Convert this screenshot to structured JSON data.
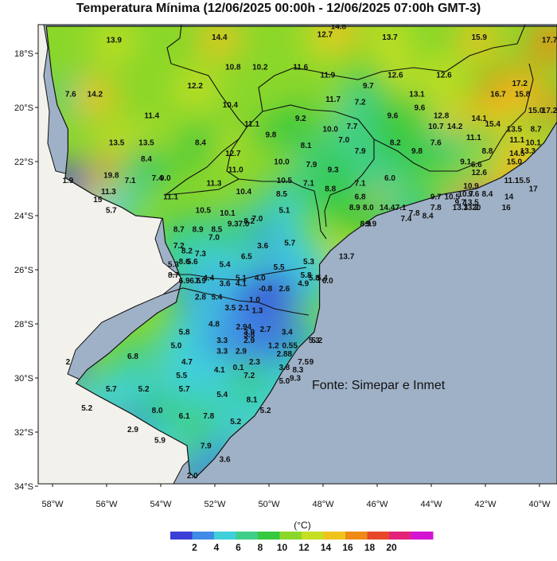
{
  "title": "Temperatura Mínima (12/06/2025 00:00h - 12/06/2025 07:00h GMT-3)",
  "source": "Fonte: Simepar e Inmet",
  "colorbar": {
    "unit": "(°C)",
    "ticks": [
      "2",
      "4",
      "6",
      "8",
      "10",
      "12",
      "14",
      "16",
      "18",
      "20"
    ],
    "colors": [
      "#3b3fd6",
      "#3f8be6",
      "#3fd0d9",
      "#3fcf8a",
      "#35c93e",
      "#8ad72a",
      "#c5df22",
      "#f0c21c",
      "#ef8a18",
      "#e8482a",
      "#e3237a",
      "#d414d3"
    ]
  },
  "colors": {
    "ocean": "#9fb1c6",
    "outside_land": "#f2f1ec",
    "border": "#111111"
  },
  "axes": {
    "lat_labels": [
      "18°S",
      "20°S",
      "22°S",
      "24°S",
      "26°S",
      "28°S",
      "30°S",
      "32°S",
      "34°S"
    ],
    "lon_labels": [
      "58°W",
      "56°W",
      "54°W",
      "52°W",
      "50°W",
      "48°W",
      "46°W",
      "44°W",
      "42°W",
      "40°W"
    ]
  },
  "stations": [
    {
      "lon": -56.2,
      "lat": -17.6,
      "v": "13.9"
    },
    {
      "lon": -52.3,
      "lat": -17.5,
      "v": "14.4"
    },
    {
      "lon": -48.4,
      "lat": -17.4,
      "v": "12.7"
    },
    {
      "lon": -47.9,
      "lat": -17.1,
      "v": "14.8"
    },
    {
      "lon": -46.0,
      "lat": -17.5,
      "v": "13.7"
    },
    {
      "lon": -42.7,
      "lat": -17.5,
      "v": "15.9"
    },
    {
      "lon": -40.1,
      "lat": -17.6,
      "v": "17.7"
    },
    {
      "lon": -51.8,
      "lat": -18.6,
      "v": "10.8"
    },
    {
      "lon": -50.8,
      "lat": -18.6,
      "v": "10.2"
    },
    {
      "lon": -49.3,
      "lat": -18.6,
      "v": "11.6"
    },
    {
      "lon": -48.3,
      "lat": -18.9,
      "v": "11.9"
    },
    {
      "lon": -45.8,
      "lat": -18.9,
      "v": "12.6"
    },
    {
      "lon": -44.0,
      "lat": -18.9,
      "v": "12.6"
    },
    {
      "lon": -57.8,
      "lat": -19.6,
      "v": "7.6"
    },
    {
      "lon": -56.9,
      "lat": -19.6,
      "v": "14.2"
    },
    {
      "lon": -53.2,
      "lat": -19.3,
      "v": "12.2"
    },
    {
      "lon": -46.8,
      "lat": -19.3,
      "v": "9.7"
    },
    {
      "lon": -45.0,
      "lat": -19.6,
      "v": "13.1"
    },
    {
      "lon": -42.0,
      "lat": -19.6,
      "v": "16.7"
    },
    {
      "lon": -41.2,
      "lat": -19.2,
      "v": "17.2"
    },
    {
      "lon": -41.1,
      "lat": -19.6,
      "v": "15.8"
    },
    {
      "lon": -48.1,
      "lat": -19.8,
      "v": "11.7"
    },
    {
      "lon": -47.1,
      "lat": -19.9,
      "v": "7.2"
    },
    {
      "lon": -44.9,
      "lat": -20.1,
      "v": "9.6"
    },
    {
      "lon": -51.9,
      "lat": -20.0,
      "v": "10.4"
    },
    {
      "lon": -45.9,
      "lat": -20.4,
      "v": "9.6"
    },
    {
      "lon": -44.1,
      "lat": -20.4,
      "v": "12.8"
    },
    {
      "lon": -42.7,
      "lat": -20.5,
      "v": "14.1"
    },
    {
      "lon": -42.2,
      "lat": -20.7,
      "v": "15.4"
    },
    {
      "lon": -40.6,
      "lat": -20.2,
      "v": "15.0"
    },
    {
      "lon": -40.1,
      "lat": -20.2,
      "v": "17.2"
    },
    {
      "lon": -54.8,
      "lat": -20.4,
      "v": "11.4"
    },
    {
      "lon": -49.3,
      "lat": -20.5,
      "v": "9.2"
    },
    {
      "lon": -51.1,
      "lat": -20.7,
      "v": "11.1"
    },
    {
      "lon": -44.3,
      "lat": -20.8,
      "v": "10.7"
    },
    {
      "lon": -43.6,
      "lat": -20.8,
      "v": "14.2"
    },
    {
      "lon": -41.4,
      "lat": -20.9,
      "v": "13.5"
    },
    {
      "lon": -40.6,
      "lat": -20.9,
      "v": "8.7"
    },
    {
      "lon": -48.2,
      "lat": -20.9,
      "v": "10.0"
    },
    {
      "lon": -47.4,
      "lat": -20.8,
      "v": "7.7"
    },
    {
      "lon": -50.4,
      "lat": -21.1,
      "v": "9.8"
    },
    {
      "lon": -47.7,
      "lat": -21.3,
      "v": "7.0"
    },
    {
      "lon": -42.9,
      "lat": -21.2,
      "v": "11.1"
    },
    {
      "lon": -41.3,
      "lat": -21.3,
      "v": "11.1"
    },
    {
      "lon": -40.7,
      "lat": -21.4,
      "v": "10.1"
    },
    {
      "lon": -56.1,
      "lat": -21.4,
      "v": "13.5"
    },
    {
      "lon": -55.0,
      "lat": -21.4,
      "v": "13.5"
    },
    {
      "lon": -53.0,
      "lat": -21.4,
      "v": "8.4"
    },
    {
      "lon": -45.8,
      "lat": -21.4,
      "v": "8.2"
    },
    {
      "lon": -44.3,
      "lat": -21.4,
      "v": "7.6"
    },
    {
      "lon": -49.1,
      "lat": -21.5,
      "v": "8.1"
    },
    {
      "lon": -47.1,
      "lat": -21.7,
      "v": "7.9"
    },
    {
      "lon": -40.9,
      "lat": -21.7,
      "v": "13.3"
    },
    {
      "lon": -42.4,
      "lat": -21.7,
      "v": "8.8"
    },
    {
      "lon": -51.8,
      "lat": -21.8,
      "v": "12.7"
    },
    {
      "lon": -41.3,
      "lat": -21.8,
      "v": "14.5"
    },
    {
      "lon": -45.0,
      "lat": -21.7,
      "v": "9.8"
    },
    {
      "lon": -55.0,
      "lat": -22.0,
      "v": "8.4"
    },
    {
      "lon": -50.0,
      "lat": -22.1,
      "v": "10.0"
    },
    {
      "lon": -48.9,
      "lat": -22.2,
      "v": "7.9"
    },
    {
      "lon": -43.2,
      "lat": -22.1,
      "v": "9.1"
    },
    {
      "lon": -42.8,
      "lat": -22.2,
      "v": "6.6"
    },
    {
      "lon": -41.4,
      "lat": -22.1,
      "v": "15.0"
    },
    {
      "lon": -48.1,
      "lat": -22.4,
      "v": "9.3"
    },
    {
      "lon": -56.3,
      "lat": -22.6,
      "v": "19.8"
    },
    {
      "lon": -51.7,
      "lat": -22.4,
      "v": "11.0"
    },
    {
      "lon": -42.7,
      "lat": -22.5,
      "v": "12.6"
    },
    {
      "lon": -54.6,
      "lat": -22.7,
      "v": "7.4"
    },
    {
      "lon": -54.3,
      "lat": -22.7,
      "v": "9.0"
    },
    {
      "lon": -49.9,
      "lat": -22.8,
      "v": "10.5"
    },
    {
      "lon": -46.0,
      "lat": -22.7,
      "v": "6.0"
    },
    {
      "lon": -55.6,
      "lat": -22.8,
      "v": "7.1"
    },
    {
      "lon": -52.5,
      "lat": -22.9,
      "v": "11.3"
    },
    {
      "lon": -49.0,
      "lat": -22.9,
      "v": "7.1"
    },
    {
      "lon": -47.1,
      "lat": -22.9,
      "v": "7.1"
    },
    {
      "lon": -57.9,
      "lat": -22.8,
      "v": "1.9"
    },
    {
      "lon": -41.5,
      "lat": -22.8,
      "v": "11.1"
    },
    {
      "lon": -41.1,
      "lat": -22.8,
      "v": "15.5"
    },
    {
      "lon": -43.0,
      "lat": -23.0,
      "v": "10.9"
    },
    {
      "lon": -48.2,
      "lat": -23.1,
      "v": "8.8"
    },
    {
      "lon": -40.7,
      "lat": -23.1,
      "v": "17"
    },
    {
      "lon": -51.4,
      "lat": -23.2,
      "v": "10.4"
    },
    {
      "lon": -56.4,
      "lat": -23.2,
      "v": "11.3"
    },
    {
      "lon": -54.1,
      "lat": -23.4,
      "v": "11.1"
    },
    {
      "lon": -50.0,
      "lat": -23.3,
      "v": "8.5"
    },
    {
      "lon": -44.3,
      "lat": -23.4,
      "v": "9.7"
    },
    {
      "lon": -43.7,
      "lat": -23.4,
      "v": "10.5"
    },
    {
      "lon": -43.2,
      "lat": -23.3,
      "v": "10.7"
    },
    {
      "lon": -42.9,
      "lat": -23.3,
      "v": "9.6"
    },
    {
      "lon": -42.4,
      "lat": -23.3,
      "v": "8.4"
    },
    {
      "lon": -41.6,
      "lat": -23.4,
      "v": "14"
    },
    {
      "lon": -47.1,
      "lat": -23.4,
      "v": "6.8"
    },
    {
      "lon": -56.8,
      "lat": -23.5,
      "v": "15"
    },
    {
      "lon": -43.4,
      "lat": -23.6,
      "v": "9.7"
    },
    {
      "lon": -43.0,
      "lat": -23.6,
      "v": "13.5"
    },
    {
      "lon": -47.3,
      "lat": -23.8,
      "v": "8.9"
    },
    {
      "lon": -46.8,
      "lat": -23.8,
      "v": "8.0"
    },
    {
      "lon": -46.1,
      "lat": -23.8,
      "v": "14.4"
    },
    {
      "lon": -45.6,
      "lat": -23.8,
      "v": "7.1"
    },
    {
      "lon": -44.3,
      "lat": -23.8,
      "v": "7.8"
    },
    {
      "lon": -43.4,
      "lat": -23.8,
      "v": "13.3"
    },
    {
      "lon": -43.0,
      "lat": -23.8,
      "v": "13.2"
    },
    {
      "lon": -42.8,
      "lat": -23.8,
      "v": "20"
    },
    {
      "lon": -41.7,
      "lat": -23.8,
      "v": "16"
    },
    {
      "lon": -52.9,
      "lat": -23.9,
      "v": "10.5"
    },
    {
      "lon": -56.3,
      "lat": -23.9,
      "v": "5.7"
    },
    {
      "lon": -52.0,
      "lat": -24.0,
      "v": "10.1"
    },
    {
      "lon": -49.9,
      "lat": -23.9,
      "v": "5.1"
    },
    {
      "lon": -45.1,
      "lat": -24.0,
      "v": "7.8"
    },
    {
      "lon": -50.9,
      "lat": -24.2,
      "v": "7.0"
    },
    {
      "lon": -44.6,
      "lat": -24.1,
      "v": "8.4"
    },
    {
      "lon": -51.2,
      "lat": -24.3,
      "v": "8.2"
    },
    {
      "lon": -51.8,
      "lat": -24.4,
      "v": "9.3"
    },
    {
      "lon": -51.4,
      "lat": -24.4,
      "v": "7.0"
    },
    {
      "lon": -45.4,
      "lat": -24.2,
      "v": "7.4"
    },
    {
      "lon": -46.9,
      "lat": -24.4,
      "v": "8.9"
    },
    {
      "lon": -46.7,
      "lat": -24.4,
      "v": "9.9"
    },
    {
      "lon": -53.8,
      "lat": -24.6,
      "v": "8.7"
    },
    {
      "lon": -53.1,
      "lat": -24.6,
      "v": "8.9"
    },
    {
      "lon": -52.4,
      "lat": -24.6,
      "v": "8.5"
    },
    {
      "lon": -52.5,
      "lat": -24.9,
      "v": "7.0"
    },
    {
      "lon": -49.7,
      "lat": -25.1,
      "v": "5.7"
    },
    {
      "lon": -50.7,
      "lat": -25.2,
      "v": "3.6"
    },
    {
      "lon": -53.8,
      "lat": -25.2,
      "v": "7.2"
    },
    {
      "lon": -53.5,
      "lat": -25.4,
      "v": "8.2"
    },
    {
      "lon": -53.0,
      "lat": -25.5,
      "v": "7.3"
    },
    {
      "lon": -51.3,
      "lat": -25.6,
      "v": "6.5"
    },
    {
      "lon": -47.6,
      "lat": -25.6,
      "v": "13.7"
    },
    {
      "lon": -53.6,
      "lat": -25.8,
      "v": "8.6"
    },
    {
      "lon": -54.0,
      "lat": -25.9,
      "v": "5.3"
    },
    {
      "lon": -53.3,
      "lat": -25.8,
      "v": "5.6"
    },
    {
      "lon": -52.1,
      "lat": -25.9,
      "v": "5.4"
    },
    {
      "lon": -49.0,
      "lat": -25.8,
      "v": "5.3"
    },
    {
      "lon": -50.1,
      "lat": -26.0,
      "v": "5.5"
    },
    {
      "lon": -54.0,
      "lat": -26.3,
      "v": "8.7"
    },
    {
      "lon": -53.6,
      "lat": -26.5,
      "v": "6.9"
    },
    {
      "lon": -53.2,
      "lat": -26.5,
      "v": "6.6"
    },
    {
      "lon": -53.0,
      "lat": -26.5,
      "v": "7.9"
    },
    {
      "lon": -52.7,
      "lat": -26.4,
      "v": "4.4"
    },
    {
      "lon": -51.5,
      "lat": -26.4,
      "v": "5.1"
    },
    {
      "lon": -50.8,
      "lat": -26.4,
      "v": "4.0"
    },
    {
      "lon": -49.1,
      "lat": -26.3,
      "v": "5.8"
    },
    {
      "lon": -48.8,
      "lat": -26.4,
      "v": "5.8"
    },
    {
      "lon": -48.5,
      "lat": -26.4,
      "v": "5.4"
    },
    {
      "lon": -48.3,
      "lat": -26.5,
      "v": "6.0"
    },
    {
      "lon": -52.1,
      "lat": -26.6,
      "v": "3.6"
    },
    {
      "lon": -51.5,
      "lat": -26.6,
      "v": "4.1"
    },
    {
      "lon": -49.2,
      "lat": -26.6,
      "v": "4.9"
    },
    {
      "lon": -49.9,
      "lat": -26.8,
      "v": "2.6"
    },
    {
      "lon": -50.6,
      "lat": -26.8,
      "v": "-0.8"
    },
    {
      "lon": -53.0,
      "lat": -27.1,
      "v": "2.8"
    },
    {
      "lon": -52.4,
      "lat": -27.1,
      "v": "5.4"
    },
    {
      "lon": -51.0,
      "lat": -27.2,
      "v": "1.0"
    },
    {
      "lon": -51.9,
      "lat": -27.5,
      "v": "3.5"
    },
    {
      "lon": -51.4,
      "lat": -27.5,
      "v": "2.1"
    },
    {
      "lon": -50.9,
      "lat": -27.6,
      "v": "1.3"
    },
    {
      "lon": -52.5,
      "lat": -28.1,
      "v": "4.8"
    },
    {
      "lon": -51.4,
      "lat": -28.2,
      "v": "2.94"
    },
    {
      "lon": -50.6,
      "lat": -28.3,
      "v": "2.7"
    },
    {
      "lon": -53.6,
      "lat": -28.4,
      "v": "5.8"
    },
    {
      "lon": -51.2,
      "lat": -28.4,
      "v": "3.9"
    },
    {
      "lon": -49.8,
      "lat": -28.4,
      "v": "3.4"
    },
    {
      "lon": -51.2,
      "lat": -28.5,
      "v": "3.8"
    },
    {
      "lon": -51.2,
      "lat": -28.7,
      "v": "2.9"
    },
    {
      "lon": -52.2,
      "lat": -28.7,
      "v": "3.3"
    },
    {
      "lon": -48.7,
      "lat": -28.7,
      "v": "5.2"
    },
    {
      "lon": -48.8,
      "lat": -28.7,
      "v": "5.3"
    },
    {
      "lon": -53.9,
      "lat": -28.9,
      "v": "5.0"
    },
    {
      "lon": -50.3,
      "lat": -28.9,
      "v": "1.2"
    },
    {
      "lon": -49.7,
      "lat": -28.9,
      "v": "0.55"
    },
    {
      "lon": -52.2,
      "lat": -29.1,
      "v": "3.3"
    },
    {
      "lon": -51.5,
      "lat": -29.1,
      "v": "2.9"
    },
    {
      "lon": -49.9,
      "lat": -29.2,
      "v": "2.88"
    },
    {
      "lon": -55.5,
      "lat": -29.3,
      "v": "6.8"
    },
    {
      "lon": -49.2,
      "lat": -29.5,
      "v": "7.5"
    },
    {
      "lon": -48.9,
      "lat": -29.5,
      "v": "9"
    },
    {
      "lon": -57.9,
      "lat": -29.5,
      "v": "2"
    },
    {
      "lon": -53.5,
      "lat": -29.5,
      "v": "4.7"
    },
    {
      "lon": -51.0,
      "lat": -29.5,
      "v": "2.3"
    },
    {
      "lon": -49.9,
      "lat": -29.7,
      "v": "3.8"
    },
    {
      "lon": -51.6,
      "lat": -29.7,
      "v": "0.1"
    },
    {
      "lon": -52.3,
      "lat": -29.8,
      "v": "4.1"
    },
    {
      "lon": -49.4,
      "lat": -29.8,
      "v": "8.3"
    },
    {
      "lon": -53.7,
      "lat": -30.0,
      "v": "5.5"
    },
    {
      "lon": -49.5,
      "lat": -30.1,
      "v": "9.3"
    },
    {
      "lon": -51.2,
      "lat": -30.0,
      "v": "7.2"
    },
    {
      "lon": -49.9,
      "lat": -30.2,
      "v": "5.0"
    },
    {
      "lon": -56.3,
      "lat": -30.5,
      "v": "5.7"
    },
    {
      "lon": -55.1,
      "lat": -30.5,
      "v": "5.2"
    },
    {
      "lon": -53.6,
      "lat": -30.5,
      "v": "5.7"
    },
    {
      "lon": -52.2,
      "lat": -30.7,
      "v": "5.4"
    },
    {
      "lon": -51.1,
      "lat": -30.9,
      "v": "8.1"
    },
    {
      "lon": -50.6,
      "lat": -31.3,
      "v": "5.2"
    },
    {
      "lon": -57.2,
      "lat": -31.2,
      "v": "5.2"
    },
    {
      "lon": -54.6,
      "lat": -31.3,
      "v": "8.0"
    },
    {
      "lon": -53.6,
      "lat": -31.5,
      "v": "6.1"
    },
    {
      "lon": -52.7,
      "lat": -31.5,
      "v": "7.8"
    },
    {
      "lon": -51.7,
      "lat": -31.7,
      "v": "5.2"
    },
    {
      "lon": -55.5,
      "lat": -32.0,
      "v": "2.9"
    },
    {
      "lon": -54.5,
      "lat": -32.4,
      "v": "5.9"
    },
    {
      "lon": -52.8,
      "lat": -32.6,
      "v": "7.9"
    },
    {
      "lon": -52.1,
      "lat": -33.1,
      "v": "3.6"
    },
    {
      "lon": -53.3,
      "lat": -33.7,
      "v": "2.0"
    }
  ]
}
